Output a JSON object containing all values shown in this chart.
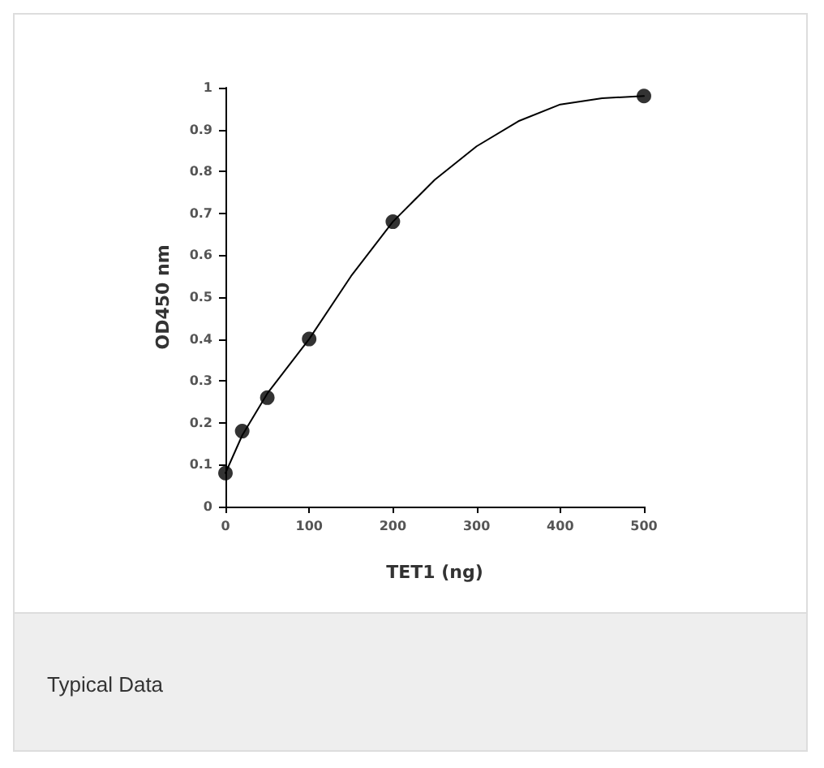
{
  "chart_data": {
    "type": "scatter",
    "xlabel": "TET1 (ng)",
    "ylabel": "OD450 nm",
    "series": [
      {
        "color": "#000000",
        "x": [
          0,
          20,
          50,
          100,
          200,
          500
        ],
        "values": [
          0.08,
          0.18,
          0.26,
          0.4,
          0.68,
          0.98
        ]
      },
      {
        "type": "line",
        "marker": "none",
        "color": "#000000",
        "x": [
          0,
          20,
          50,
          100,
          150,
          200,
          250,
          300,
          350,
          400,
          450,
          500
        ],
        "values": [
          0.08,
          0.17,
          0.27,
          0.4,
          0.55,
          0.68,
          0.78,
          0.86,
          0.92,
          0.96,
          0.975,
          0.98
        ]
      }
    ],
    "xlim": [
      0,
      500
    ],
    "xticks": [
      0,
      100,
      200,
      300,
      400,
      500
    ],
    "ylim": [
      0,
      1
    ],
    "yticks": [
      0,
      0.1,
      0.2,
      0.3,
      0.4,
      0.5,
      0.6,
      0.7,
      0.8,
      0.9,
      1
    ],
    "grid": false,
    "marker": "circle",
    "line_style": "solid",
    "annotations": [
      "Typical Data"
    ]
  }
}
